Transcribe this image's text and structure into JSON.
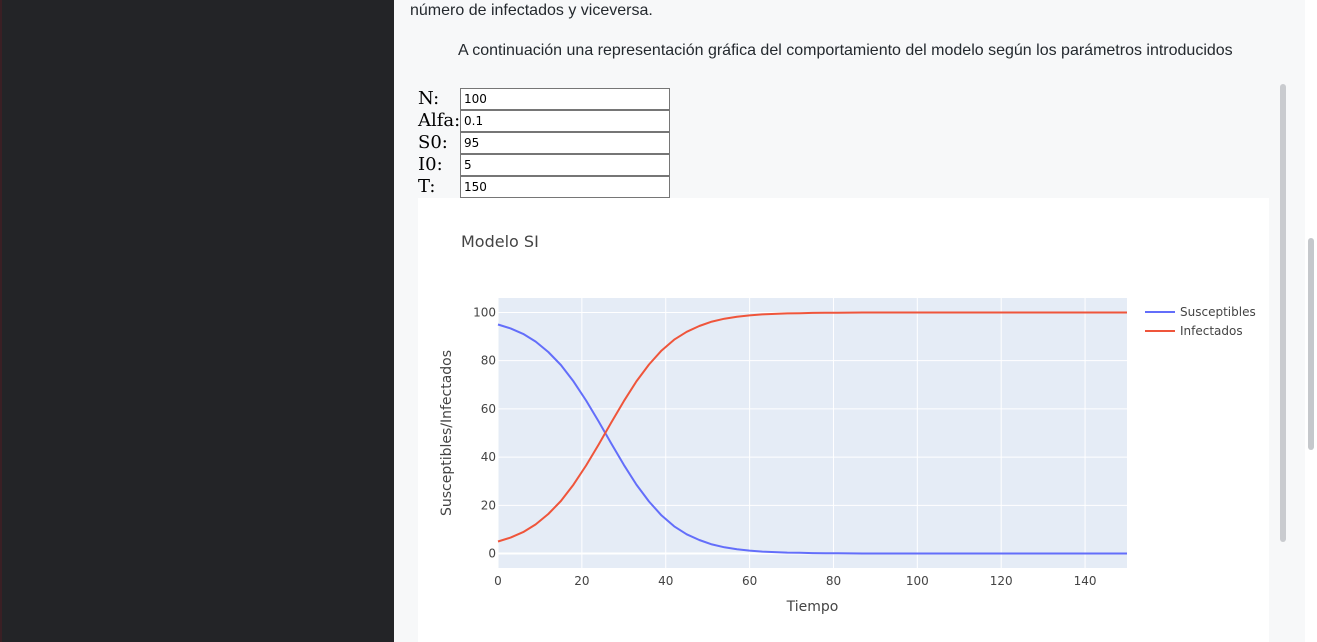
{
  "text": {
    "para1": "número de infectados y viceversa.",
    "para2": "A continuación una representación gráfica del comportamiento del modelo según los parámetros introducidos"
  },
  "form": [
    {
      "label": "N:",
      "value": "100"
    },
    {
      "label": "Alfa:",
      "value": "0.1"
    },
    {
      "label": "S0:",
      "value": "95"
    },
    {
      "label": "I0:",
      "value": "5"
    },
    {
      "label": "T:",
      "value": "150"
    }
  ],
  "chart_data": {
    "type": "line",
    "title": "Modelo SI",
    "xlabel": "Tiempo",
    "ylabel": "Susceptibles/Infectados",
    "xlim": [
      0,
      150
    ],
    "ylim": [
      -6,
      106
    ],
    "xticks": [
      0,
      20,
      40,
      60,
      80,
      100,
      120,
      140
    ],
    "yticks": [
      0,
      20,
      40,
      60,
      80,
      100
    ],
    "grid": true,
    "legend": "top-right",
    "x": [
      0,
      3,
      6,
      9,
      12,
      15,
      18,
      21,
      24,
      27,
      30,
      33,
      36,
      39,
      42,
      45,
      48,
      51,
      54,
      57,
      60,
      63,
      66,
      69,
      72,
      75,
      78,
      81,
      84,
      87,
      90,
      100,
      110,
      120,
      130,
      140,
      150
    ],
    "series": [
      {
        "name": "Susceptibles",
        "color": "#636efa",
        "values": [
          95,
          93.4,
          91.1,
          87.9,
          83.6,
          78.2,
          71.4,
          63.5,
          54.8,
          45.7,
          36.8,
          28.6,
          21.6,
          15.8,
          11.3,
          8.0,
          5.6,
          3.8,
          2.6,
          1.8,
          1.2,
          0.8,
          0.6,
          0.4,
          0.3,
          0.2,
          0.1,
          0.1,
          0.05,
          0.03,
          0.02,
          0.01,
          0,
          0,
          0,
          0,
          0
        ]
      },
      {
        "name": "Infectados",
        "color": "#ef553b",
        "values": [
          5,
          6.6,
          8.9,
          12.1,
          16.4,
          21.8,
          28.6,
          36.5,
          45.2,
          54.3,
          63.2,
          71.4,
          78.4,
          84.2,
          88.7,
          92.0,
          94.4,
          96.2,
          97.4,
          98.2,
          98.8,
          99.2,
          99.4,
          99.6,
          99.7,
          99.8,
          99.9,
          99.9,
          99.95,
          99.97,
          99.98,
          99.99,
          100,
          100,
          100,
          100,
          100
        ]
      }
    ]
  }
}
